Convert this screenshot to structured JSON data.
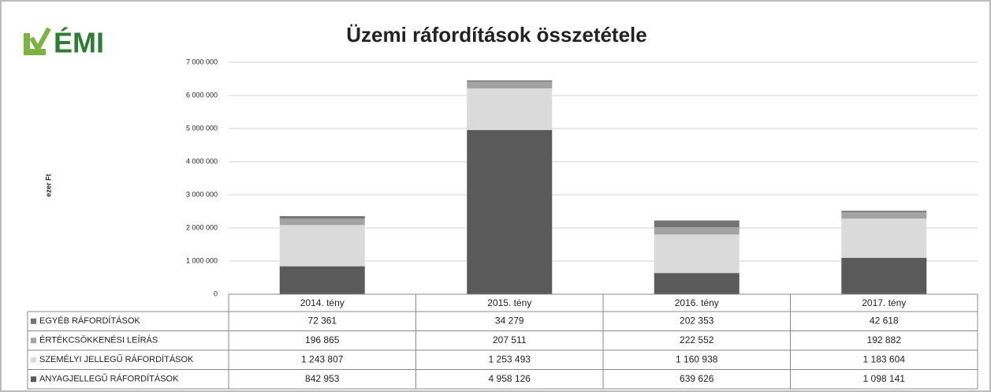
{
  "logo": "ÉMI",
  "chart_data": {
    "type": "stacked_bar",
    "title": "Üzemi ráfordítások összetétele",
    "y_label": "ezer Ft",
    "categories": [
      "2014. tény",
      "2015. tény",
      "2016. tény",
      "2017. tény"
    ],
    "series": [
      {
        "name": "ANYAGJELLEGŰ RÁFORDÍTÁSOK",
        "color": "#5a5a5a",
        "values": [
          842953,
          4958126,
          639626,
          1098141
        ],
        "value_labels": [
          "842 953",
          "4 958 126",
          "639 626",
          "1 098 141"
        ]
      },
      {
        "name": "SZEMÉLYI JELLEGŰ RÁFORDÍTÁSOK",
        "color": "#dadada",
        "values": [
          1243807,
          1253493,
          1160938,
          1183604
        ],
        "value_labels": [
          "1 243 807",
          "1 253 493",
          "1 160 938",
          "1 183 604"
        ]
      },
      {
        "name": "ÉRTÉKCSÖKKENÉSI LEÍRÁS",
        "color": "#a3a3a3",
        "values": [
          196865,
          207511,
          222552,
          192882
        ],
        "value_labels": [
          "196 865",
          "207 511",
          "222 552",
          "192 882"
        ]
      },
      {
        "name": "EGYÉB RÁFORDÍTÁSOK",
        "color": "#747474",
        "values": [
          72361,
          34279,
          202353,
          42618
        ],
        "value_labels": [
          "72 361",
          "34 279",
          "202 353",
          "42 618"
        ]
      }
    ],
    "ylim": [
      0,
      7000000
    ],
    "yticks": [
      0,
      {
        "value": 1000000,
        "label": "1 000 000"
      },
      {
        "value": 2000000,
        "label": "2 000 000"
      },
      {
        "value": 3000000,
        "label": "3 000 000"
      },
      {
        "value": 4000000,
        "label": "4 000 000"
      },
      {
        "value": 5000000,
        "label": "5 000 000"
      },
      {
        "value": 6000000,
        "label": "6 000 000"
      },
      {
        "value": 7000000,
        "label": "7 000 000"
      }
    ],
    "grid": true
  }
}
